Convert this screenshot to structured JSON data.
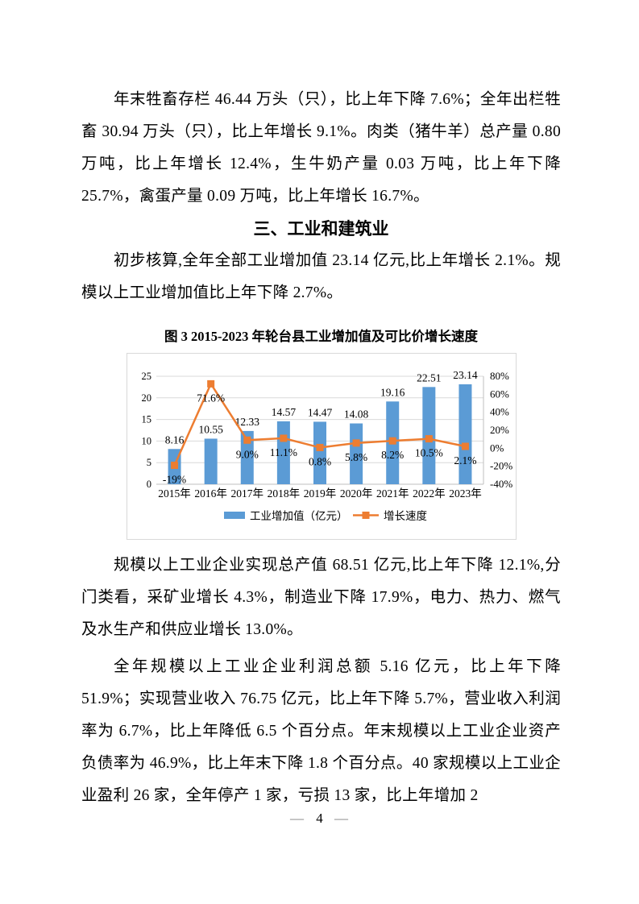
{
  "section": {
    "heading": "三、工业和建筑业"
  },
  "paragraphs": {
    "p1": "年末牲畜存栏 46.44 万头（只），比上年下降 7.6%；全年出栏牲畜 30.94 万头（只），比上年增长 9.1%。肉类（猪牛羊）总产量 0.80 万吨，比上年增长 12.4%，生牛奶产量 0.03 万吨，比上年下降 25.7%，禽蛋产量 0.09 万吨，比上年增长 16.7%。",
    "p2": "初步核算,全年全部工业增加值 23.14 亿元,比上年增长 2.1%。规模以上工业增加值比上年下降 2.7%。",
    "p3": "规模以上工业企业实现总产值 68.51 亿元,比上年下降 12.1%,分门类看，采矿业增长 4.3%，制造业下降 17.9%，电力、热力、燃气及水生产和供应业增长 13.0%。",
    "p4": "全年规模以上工业企业利润总额 5.16 亿元，比上年下降 51.9%；实现营业收入 76.75 亿元，比上年下降 5.7%，营业收入利润率为 6.7%，比上年降低 6.5 个百分点。年末规模以上工业企业资产负债率为 46.9%，比上年末下降 1.8 个百分点。40 家规模以上工业企业盈利 26 家，全年停产 1 家，亏损 13 家，比上年增加 2"
  },
  "chart": {
    "title": "图 3 2015-2023 年轮台县工业增加值及可比价增长速度"
  },
  "chart_data": {
    "type": "bar",
    "subtype": "bar+line combo, dual axis",
    "title": "图 3 2015-2023 年轮台县工业增加值及可比价增长速度",
    "categories": [
      "2015年",
      "2016年",
      "2017年",
      "2018年",
      "2019年",
      "2020年",
      "2021年",
      "2022年",
      "2023年"
    ],
    "series": [
      {
        "name": "工业增加值（亿元）",
        "type": "bar",
        "axis": "left",
        "color": "#5B9BD5",
        "values": [
          8.16,
          10.55,
          12.33,
          14.57,
          14.47,
          14.08,
          19.16,
          22.51,
          23.14
        ],
        "labels": [
          "8.16",
          "10.55",
          "12.33",
          "14.57",
          "14.47",
          "14.08",
          "19.16",
          "22.51",
          "23.14"
        ]
      },
      {
        "name": "增长速度",
        "type": "line",
        "axis": "right",
        "color": "#ED7D31",
        "values": [
          -19,
          71.6,
          9.0,
          11.1,
          0.8,
          5.8,
          8.2,
          10.5,
          2.1
        ],
        "labels": [
          "-19%",
          "71.6%",
          "9.0%",
          "11.1%",
          "0.8%",
          "5.8%",
          "8.2%",
          "10.5%",
          "2.1%"
        ]
      }
    ],
    "left_axis": {
      "min": 0,
      "max": 25,
      "tick_values": [
        0,
        5,
        10,
        15,
        20,
        25
      ],
      "tick_labels": [
        "0",
        "5",
        "10",
        "15",
        "20",
        "25"
      ]
    },
    "right_axis": {
      "min": -40,
      "max": 80,
      "tick_values": [
        -40,
        -20,
        0,
        20,
        40,
        60,
        80
      ],
      "tick_labels": [
        "-40%",
        "-20%",
        "0%",
        "20%",
        "40%",
        "60%",
        "80%"
      ]
    },
    "grid": true,
    "legend_position": "bottom"
  },
  "footer": {
    "dash_left": "—",
    "page_number": "4",
    "dash_right": "—"
  }
}
